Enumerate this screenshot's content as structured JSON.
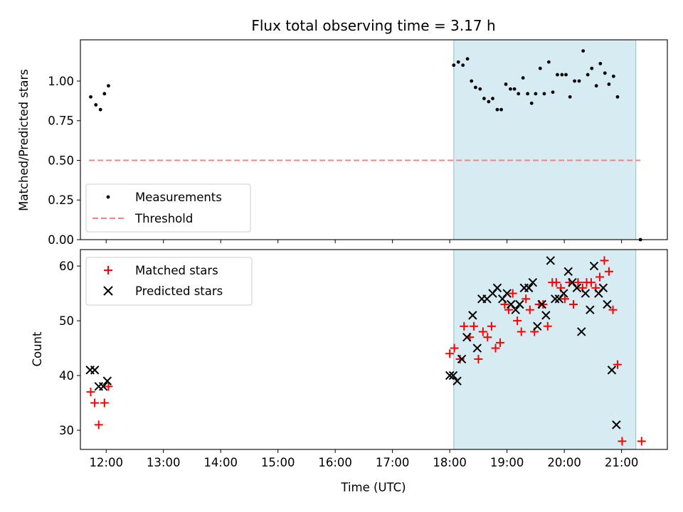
{
  "chart_data": [
    {
      "type": "scatter",
      "title": "Flux total observing time = 3.17 h",
      "xlabel": "",
      "ylabel": "Matched/Predicted stars",
      "xlim": [
        11.55,
        21.8
      ],
      "ylim": [
        0,
        1.26
      ],
      "yticks": [
        0.0,
        0.25,
        0.5,
        0.75,
        1.0
      ],
      "ytick_labels": [
        "0.00",
        "0.25",
        "0.50",
        "0.75",
        "1.00"
      ],
      "shaded_interval": {
        "x": [
          18.07,
          21.25
        ],
        "color": "#add8e6"
      },
      "legend": {
        "position": "lower-left",
        "entries": [
          "Measurements",
          "Threshold"
        ]
      },
      "series": [
        {
          "name": "Measurements",
          "style": "dot",
          "color": "#000000",
          "points": [
            [
              11.73,
              0.9
            ],
            [
              11.82,
              0.85
            ],
            [
              11.9,
              0.82
            ],
            [
              11.97,
              0.92
            ],
            [
              12.04,
              0.97
            ],
            [
              18.07,
              1.1
            ],
            [
              18.15,
              1.12
            ],
            [
              18.23,
              1.1
            ],
            [
              18.31,
              1.14
            ],
            [
              18.38,
              1.0
            ],
            [
              18.45,
              0.96
            ],
            [
              18.53,
              0.95
            ],
            [
              18.6,
              0.89
            ],
            [
              18.68,
              0.87
            ],
            [
              18.75,
              0.89
            ],
            [
              18.83,
              0.82
            ],
            [
              18.9,
              0.82
            ],
            [
              18.98,
              0.98
            ],
            [
              19.06,
              0.95
            ],
            [
              19.13,
              0.95
            ],
            [
              19.2,
              0.92
            ],
            [
              19.28,
              1.02
            ],
            [
              19.36,
              0.92
            ],
            [
              19.43,
              0.86
            ],
            [
              19.5,
              0.92
            ],
            [
              19.58,
              1.08
            ],
            [
              19.65,
              0.92
            ],
            [
              19.73,
              1.12
            ],
            [
              19.8,
              0.93
            ],
            [
              19.88,
              1.04
            ],
            [
              19.96,
              1.04
            ],
            [
              20.03,
              1.04
            ],
            [
              20.1,
              0.9
            ],
            [
              20.18,
              1.0
            ],
            [
              20.26,
              1.0
            ],
            [
              20.33,
              1.19
            ],
            [
              20.41,
              1.04
            ],
            [
              20.48,
              1.08
            ],
            [
              20.56,
              0.97
            ],
            [
              20.63,
              1.11
            ],
            [
              20.71,
              1.05
            ],
            [
              20.78,
              0.98
            ],
            [
              20.86,
              1.03
            ],
            [
              20.93,
              0.9
            ],
            [
              21.33,
              0.0
            ]
          ]
        },
        {
          "name": "Threshold",
          "style": "dashed-line",
          "color": "#ff7f7f",
          "points": [
            [
              11.7,
              0.5
            ],
            [
              21.33,
              0.5
            ]
          ]
        }
      ]
    },
    {
      "type": "scatter",
      "title": "",
      "xlabel": "Time (UTC)",
      "ylabel": "Count",
      "xlim": [
        11.55,
        21.8
      ],
      "ylim": [
        26.5,
        63
      ],
      "yticks": [
        30,
        40,
        50,
        60
      ],
      "ytick_labels": [
        "30",
        "40",
        "50",
        "60"
      ],
      "xticks": [
        12,
        13,
        14,
        15,
        16,
        17,
        18,
        19,
        20,
        21
      ],
      "xtick_labels": [
        "12:00",
        "13:00",
        "14:00",
        "15:00",
        "16:00",
        "17:00",
        "18:00",
        "19:00",
        "20:00",
        "21:00"
      ],
      "shaded_interval": {
        "x": [
          18.07,
          21.25
        ],
        "color": "#add8e6"
      },
      "legend": {
        "position": "top-left",
        "entries": [
          "Matched stars",
          "Predicted stars"
        ]
      },
      "series": [
        {
          "name": "Matched stars",
          "marker": "plus",
          "color": "#ff0000",
          "points": [
            [
              11.73,
              37
            ],
            [
              11.8,
              35
            ],
            [
              11.87,
              31
            ],
            [
              11.97,
              35
            ],
            [
              12.04,
              38
            ],
            [
              18.0,
              44
            ],
            [
              18.08,
              45
            ],
            [
              18.18,
              43
            ],
            [
              18.25,
              49
            ],
            [
              18.35,
              47
            ],
            [
              18.42,
              49
            ],
            [
              18.5,
              43
            ],
            [
              18.58,
              48
            ],
            [
              18.66,
              47
            ],
            [
              18.73,
              49
            ],
            [
              18.8,
              45
            ],
            [
              18.88,
              46
            ],
            [
              18.96,
              53
            ],
            [
              19.03,
              52
            ],
            [
              19.1,
              55
            ],
            [
              19.18,
              50
            ],
            [
              19.25,
              48
            ],
            [
              19.33,
              54
            ],
            [
              19.4,
              52
            ],
            [
              19.48,
              48
            ],
            [
              19.56,
              53
            ],
            [
              19.63,
              53
            ],
            [
              19.71,
              49
            ],
            [
              19.79,
              57
            ],
            [
              19.86,
              57
            ],
            [
              19.94,
              56
            ],
            [
              20.01,
              54
            ],
            [
              20.09,
              57
            ],
            [
              20.16,
              53
            ],
            [
              20.24,
              57
            ],
            [
              20.32,
              56
            ],
            [
              20.39,
              57
            ],
            [
              20.47,
              57
            ],
            [
              20.55,
              56
            ],
            [
              20.62,
              58
            ],
            [
              20.7,
              61
            ],
            [
              20.78,
              59
            ],
            [
              20.85,
              52
            ],
            [
              20.93,
              42
            ],
            [
              21.01,
              28
            ],
            [
              21.35,
              28
            ]
          ]
        },
        {
          "name": "Predicted stars",
          "marker": "x",
          "color": "#000000",
          "points": [
            [
              11.72,
              41
            ],
            [
              11.8,
              41
            ],
            [
              11.87,
              38
            ],
            [
              11.95,
              38
            ],
            [
              12.02,
              39
            ],
            [
              18.0,
              40
            ],
            [
              18.06,
              40
            ],
            [
              18.13,
              39
            ],
            [
              18.21,
              43
            ],
            [
              18.3,
              47
            ],
            [
              18.4,
              51
            ],
            [
              18.48,
              45
            ],
            [
              18.56,
              54
            ],
            [
              18.65,
              54
            ],
            [
              18.75,
              55
            ],
            [
              18.83,
              56
            ],
            [
              18.92,
              54
            ],
            [
              19.0,
              55
            ],
            [
              19.07,
              53
            ],
            [
              19.15,
              52
            ],
            [
              19.22,
              53
            ],
            [
              19.3,
              56
            ],
            [
              19.38,
              56
            ],
            [
              19.45,
              57
            ],
            [
              19.53,
              49
            ],
            [
              19.61,
              53
            ],
            [
              19.68,
              51
            ],
            [
              19.76,
              61
            ],
            [
              19.84,
              54
            ],
            [
              19.91,
              54
            ],
            [
              19.99,
              55
            ],
            [
              20.07,
              59
            ],
            [
              20.14,
              57
            ],
            [
              20.22,
              56
            ],
            [
              20.3,
              48
            ],
            [
              20.37,
              55
            ],
            [
              20.45,
              52
            ],
            [
              20.52,
              60
            ],
            [
              20.6,
              55
            ],
            [
              20.68,
              56
            ],
            [
              20.75,
              53
            ],
            [
              20.83,
              41
            ],
            [
              20.91,
              31
            ]
          ]
        }
      ]
    }
  ]
}
